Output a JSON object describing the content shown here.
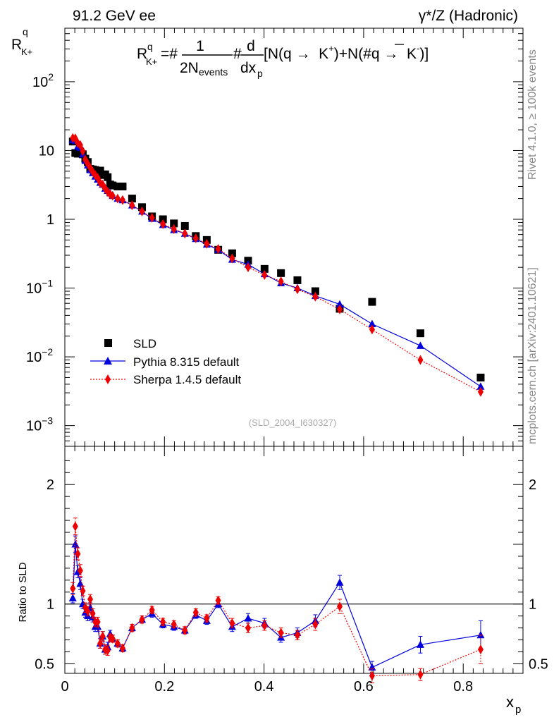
{
  "header": {
    "left_title": "91.2 GeV ee",
    "right_title": "γ*/Z (Hadronic)"
  },
  "side_labels": {
    "rivet": "Rivet 4.1.0, ≥ 100k events",
    "mcplots": "mcplots.cern.ch [arXiv:2401.10621]"
  },
  "watermark": "(SLD_2004_I630327)",
  "colors": {
    "sld": "#000000",
    "pythia": "#0000dd",
    "sherpa": "#ee0000"
  },
  "chart_data": [
    {
      "type": "scatter",
      "panel": "main",
      "yscale": "log",
      "ylabel": "R_{K+}^{q}",
      "formula": {
        "lhs": "R",
        "lhs_sup": "q",
        "lhs_sub": "K+",
        "eq": "=#",
        "frac1_num": "1",
        "frac1_den": "2N",
        "frac1_den_sub": "events",
        "mid": "#",
        "frac2_num": "d",
        "frac2_den": "dx",
        "frac2_den_sub": "p",
        "tail_a": "[N(q →  K",
        "tail_b": ")+N(#q →  K",
        "tail_c": ")]",
        "plus": "+",
        "minus": "-",
        "qbar": "q"
      },
      "xlim": [
        0,
        0.92
      ],
      "ylim": [
        0.0005,
        600
      ],
      "yticks": [
        {
          "v": 0.001,
          "base": "10",
          "exp": "−3"
        },
        {
          "v": 0.01,
          "base": "10",
          "exp": "−2"
        },
        {
          "v": 0.1,
          "base": "10",
          "exp": "−1"
        },
        {
          "v": 1,
          "base": "1",
          "exp": ""
        },
        {
          "v": 10,
          "base": "10",
          "exp": ""
        },
        {
          "v": 100,
          "base": "10",
          "exp": "2"
        }
      ],
      "legend": {
        "placement": "bottom-left",
        "entries": [
          "SLD",
          "Pythia 8.315 default",
          "Sherpa 1.4.5 default"
        ]
      },
      "series": [
        {
          "name": "SLD",
          "marker": "square",
          "line": "none",
          "x": [
            0.016,
            0.021,
            0.026,
            0.031,
            0.036,
            0.041,
            0.046,
            0.051,
            0.056,
            0.061,
            0.066,
            0.071,
            0.076,
            0.081,
            0.086,
            0.091,
            0.096,
            0.106,
            0.116,
            0.135,
            0.155,
            0.175,
            0.197,
            0.219,
            0.241,
            0.263,
            0.285,
            0.308,
            0.336,
            0.368,
            0.401,
            0.434,
            0.467,
            0.503,
            0.552,
            0.617,
            0.714,
            0.835
          ],
          "y": [
            13.5,
            9.2,
            9.0,
            9.4,
            8.8,
            7.6,
            6.8,
            5.4,
            5.3,
            5.2,
            4.7,
            5.1,
            4.4,
            4.5,
            4.1,
            3.2,
            3.1,
            3.0,
            3.0,
            2.0,
            1.5,
            1.1,
            1.0,
            0.87,
            0.8,
            0.57,
            0.5,
            0.36,
            0.32,
            0.25,
            0.19,
            0.165,
            0.13,
            0.09,
            0.05,
            0.063,
            0.022,
            0.005
          ]
        },
        {
          "name": "Pythia 8.315 default",
          "marker": "triangle",
          "line": "solid",
          "x": [
            0.016,
            0.021,
            0.026,
            0.031,
            0.036,
            0.041,
            0.046,
            0.051,
            0.056,
            0.061,
            0.066,
            0.071,
            0.076,
            0.081,
            0.086,
            0.091,
            0.096,
            0.106,
            0.116,
            0.135,
            0.155,
            0.175,
            0.197,
            0.219,
            0.241,
            0.263,
            0.285,
            0.308,
            0.336,
            0.368,
            0.401,
            0.434,
            0.467,
            0.503,
            0.552,
            0.617,
            0.714,
            0.835
          ],
          "y": [
            14.2,
            13.8,
            11.4,
            11.0,
            8.8,
            7.1,
            6.1,
            5.2,
            4.7,
            4.2,
            3.8,
            3.4,
            3.2,
            2.8,
            2.6,
            2.4,
            2.2,
            2.0,
            1.9,
            1.6,
            1.3,
            1.02,
            0.83,
            0.7,
            0.62,
            0.52,
            0.43,
            0.36,
            0.26,
            0.22,
            0.16,
            0.118,
            0.1,
            0.077,
            0.058,
            0.03,
            0.0145,
            0.0037
          ]
        },
        {
          "name": "Sherpa 1.4.5 default",
          "marker": "diamond",
          "line": "dotted",
          "x": [
            0.016,
            0.021,
            0.026,
            0.031,
            0.036,
            0.041,
            0.046,
            0.051,
            0.056,
            0.061,
            0.066,
            0.071,
            0.076,
            0.081,
            0.086,
            0.091,
            0.096,
            0.106,
            0.116,
            0.135,
            0.155,
            0.175,
            0.197,
            0.219,
            0.241,
            0.263,
            0.285,
            0.308,
            0.336,
            0.368,
            0.401,
            0.434,
            0.467,
            0.503,
            0.552,
            0.617,
            0.714,
            0.835
          ],
          "y": [
            15.2,
            15.0,
            12.8,
            12.0,
            9.8,
            7.4,
            6.4,
            5.6,
            4.9,
            4.4,
            4.0,
            3.4,
            3.2,
            2.8,
            2.5,
            2.3,
            2.2,
            2.0,
            1.9,
            1.6,
            1.3,
            1.05,
            0.85,
            0.72,
            0.62,
            0.53,
            0.44,
            0.37,
            0.27,
            0.2,
            0.155,
            0.125,
            0.096,
            0.075,
            0.049,
            0.025,
            0.009,
            0.0031
          ]
        }
      ]
    },
    {
      "type": "line",
      "panel": "ratio",
      "ylabel": "Ratio to SLD",
      "xlabel": "x_p",
      "xlabel_main": "x",
      "xlabel_sub": "p",
      "xlim": [
        0,
        0.92
      ],
      "ylim": [
        0.42,
        2.32
      ],
      "reference_line": 1,
      "yticks": [
        0.5,
        1,
        2
      ],
      "xticks": [
        0,
        0.2,
        0.4,
        0.6,
        0.8
      ],
      "series": [
        {
          "name": "Pythia 8.315 default",
          "x": [
            0.016,
            0.021,
            0.026,
            0.031,
            0.036,
            0.041,
            0.046,
            0.051,
            0.056,
            0.061,
            0.066,
            0.071,
            0.076,
            0.081,
            0.086,
            0.091,
            0.096,
            0.106,
            0.116,
            0.135,
            0.155,
            0.175,
            0.197,
            0.219,
            0.241,
            0.263,
            0.285,
            0.308,
            0.336,
            0.368,
            0.401,
            0.434,
            0.467,
            0.503,
            0.552,
            0.617,
            0.714,
            0.835
          ],
          "y": [
            1.05,
            1.5,
            1.27,
            1.17,
            1.0,
            0.93,
            0.9,
            0.97,
            0.89,
            0.81,
            0.81,
            0.67,
            0.73,
            0.62,
            0.64,
            0.75,
            0.71,
            0.67,
            0.63,
            0.8,
            0.87,
            0.92,
            0.83,
            0.81,
            0.78,
            0.91,
            0.86,
            1.0,
            0.81,
            0.88,
            0.84,
            0.72,
            0.76,
            0.86,
            1.18,
            0.47,
            0.66,
            0.74
          ],
          "err": [
            0.04,
            0.07,
            0.05,
            0.05,
            0.04,
            0.04,
            0.04,
            0.04,
            0.04,
            0.04,
            0.04,
            0.04,
            0.04,
            0.04,
            0.04,
            0.03,
            0.03,
            0.03,
            0.03,
            0.03,
            0.03,
            0.03,
            0.03,
            0.03,
            0.03,
            0.03,
            0.03,
            0.03,
            0.04,
            0.04,
            0.04,
            0.04,
            0.04,
            0.05,
            0.06,
            0.05,
            0.07,
            0.12
          ]
        },
        {
          "name": "Sherpa 1.4.5 default",
          "x": [
            0.016,
            0.021,
            0.026,
            0.031,
            0.036,
            0.041,
            0.046,
            0.051,
            0.056,
            0.061,
            0.066,
            0.071,
            0.076,
            0.081,
            0.086,
            0.091,
            0.096,
            0.106,
            0.116,
            0.135,
            0.155,
            0.175,
            0.197,
            0.219,
            0.241,
            0.263,
            0.285,
            0.308,
            0.336,
            0.368,
            0.401,
            0.434,
            0.467,
            0.503,
            0.552,
            0.617,
            0.714,
            0.835
          ],
          "y": [
            1.13,
            1.65,
            1.42,
            1.28,
            1.11,
            0.97,
            0.94,
            1.04,
            0.92,
            0.85,
            0.85,
            0.67,
            0.73,
            0.62,
            0.61,
            0.72,
            0.71,
            0.67,
            0.63,
            0.8,
            0.87,
            0.95,
            0.85,
            0.83,
            0.78,
            0.93,
            0.88,
            1.03,
            0.84,
            0.8,
            0.82,
            0.76,
            0.74,
            0.83,
            0.98,
            0.4,
            0.41,
            0.62
          ],
          "err": [
            0.05,
            0.07,
            0.05,
            0.05,
            0.04,
            0.04,
            0.04,
            0.04,
            0.04,
            0.04,
            0.04,
            0.04,
            0.04,
            0.04,
            0.04,
            0.03,
            0.03,
            0.03,
            0.03,
            0.03,
            0.03,
            0.03,
            0.03,
            0.03,
            0.03,
            0.03,
            0.03,
            0.03,
            0.04,
            0.04,
            0.04,
            0.04,
            0.04,
            0.05,
            0.06,
            0.06,
            0.05,
            0.12
          ]
        }
      ]
    }
  ]
}
